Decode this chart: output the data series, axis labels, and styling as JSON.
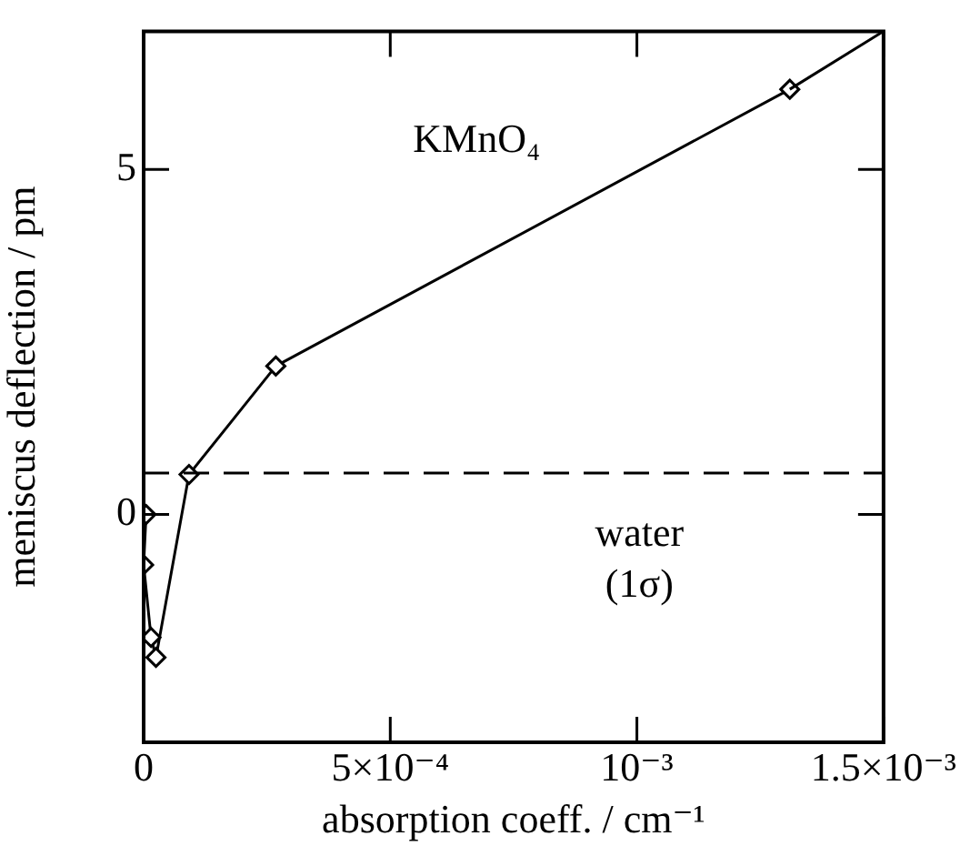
{
  "chart_data": {
    "type": "line",
    "xlabel": "absorption coeff. / cm⁻¹",
    "ylabel": "meniscus deflection / pm",
    "xlim": [
      0,
      0.0015
    ],
    "xticks": [
      0,
      {
        "value": 0.0005,
        "label": "5×10⁻⁴"
      },
      {
        "value": 0.001,
        "label": "10⁻³"
      },
      {
        "value": 0.0015,
        "label": "1.5×10⁻³"
      }
    ],
    "ylim": [
      -3.3,
      7
    ],
    "yticks": [
      0,
      5
    ],
    "series": [
      {
        "name": "KMnO₄",
        "color": "#000000",
        "x": [
          5e-06,
          0,
          1.5e-05,
          2.5e-05,
          9.2e-05,
          0.000268,
          0.00131
        ],
        "values": [
          0,
          -0.73,
          -1.78,
          -2.07,
          0.58,
          2.15,
          6.16
        ]
      },
      {
        "color": "#000000",
        "marker": "none",
        "x": [
          0.00131,
          0.0015
        ],
        "values": [
          6.16,
          7.0
        ]
      }
    ],
    "ref_lines": [
      {
        "axis": "y",
        "value": 0.6,
        "label": "water (1σ)",
        "line_style": "dashed",
        "color": "#000000"
      }
    ],
    "marker": "diamond",
    "line_style": "solid",
    "grid": false,
    "legend": false
  }
}
